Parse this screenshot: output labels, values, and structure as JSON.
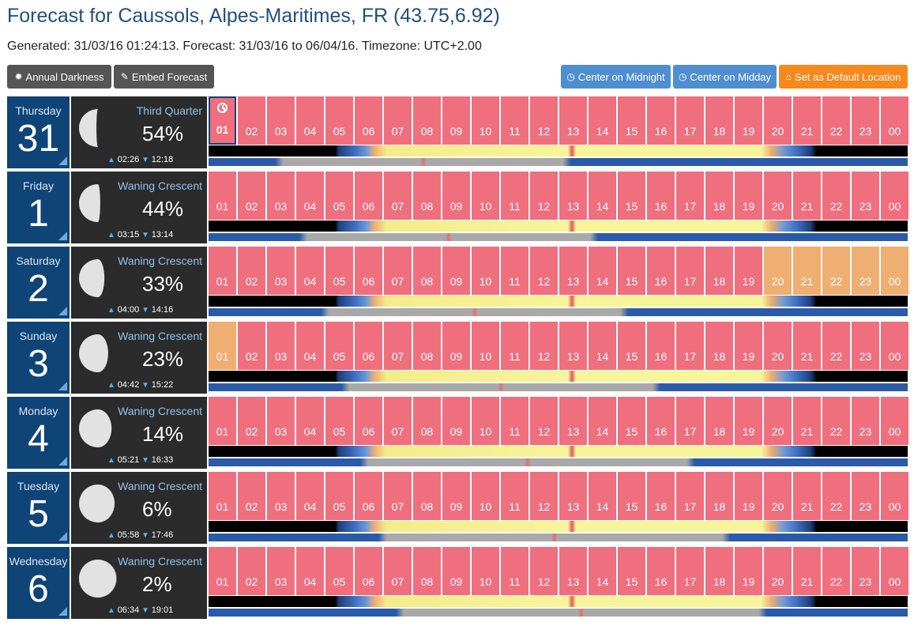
{
  "header": {
    "title": "Forecast for Caussols, Alpes-Maritimes, FR (43.75,6.92)",
    "subtitle": "Generated: 31/03/16 01:24:13. Forecast: 31/03/16 to 06/04/16. Timezone: UTC+2.00"
  },
  "buttons": {
    "annual_darkness": "Annual Darkness",
    "embed_forecast": "Embed Forecast",
    "center_midnight": "Center on Midnight",
    "center_midday": "Center on Midday",
    "set_default": "Set as Default Location"
  },
  "icons": {
    "annual_darkness": "sun-icon",
    "embed_forecast": "pin-icon",
    "center_midnight": "clock-icon",
    "center_midday": "clock-icon",
    "set_default": "home-icon"
  },
  "colors": {
    "header_blue": "#1f4f7f",
    "day_blue": "#0f4477",
    "hour_red": "#ef6f7f",
    "hour_orange": "#efae72",
    "button_blue": "#4f8fd0",
    "button_orange": "#f5891c",
    "button_dark": "#555555"
  },
  "hour_labels": [
    "01",
    "02",
    "03",
    "04",
    "05",
    "06",
    "07",
    "08",
    "09",
    "10",
    "11",
    "12",
    "13",
    "14",
    "15",
    "16",
    "17",
    "18",
    "19",
    "20",
    "21",
    "22",
    "23",
    "00"
  ],
  "days": [
    {
      "name": "Thursday",
      "num": "31",
      "phase": "Third Quarter",
      "pct": "54%",
      "rise": "02:26",
      "set": "12:18",
      "illum": 0.54,
      "orange_hours": [],
      "selected_hour": 0,
      "moon_rise_h": 2.43,
      "moon_set_h": 12.3
    },
    {
      "name": "Friday",
      "num": "1",
      "phase": "Waning Crescent",
      "pct": "44%",
      "rise": "03:15",
      "set": "13:14",
      "illum": 0.44,
      "orange_hours": [],
      "selected_hour": -1,
      "moon_rise_h": 3.25,
      "moon_set_h": 13.23
    },
    {
      "name": "Saturday",
      "num": "2",
      "phase": "Waning Crescent",
      "pct": "33%",
      "rise": "04:00",
      "set": "14:16",
      "illum": 0.33,
      "orange_hours": [
        19,
        20,
        21,
        22,
        23
      ],
      "selected_hour": -1,
      "moon_rise_h": 4.0,
      "moon_set_h": 14.27
    },
    {
      "name": "Sunday",
      "num": "3",
      "phase": "Waning Crescent",
      "pct": "23%",
      "rise": "04:42",
      "set": "15:22",
      "illum": 0.23,
      "orange_hours": [
        0
      ],
      "selected_hour": -1,
      "moon_rise_h": 4.7,
      "moon_set_h": 15.37
    },
    {
      "name": "Monday",
      "num": "4",
      "phase": "Waning Crescent",
      "pct": "14%",
      "rise": "05:21",
      "set": "16:33",
      "illum": 0.14,
      "orange_hours": [],
      "selected_hour": -1,
      "moon_rise_h": 5.35,
      "moon_set_h": 16.55
    },
    {
      "name": "Tuesday",
      "num": "5",
      "phase": "Waning Crescent",
      "pct": "6%",
      "rise": "05:58",
      "set": "17:46",
      "illum": 0.06,
      "orange_hours": [],
      "selected_hour": -1,
      "moon_rise_h": 5.97,
      "moon_set_h": 17.77
    },
    {
      "name": "Wednesday",
      "num": "6",
      "phase": "Waning Crescent",
      "pct": "2%",
      "rise": "06:34",
      "set": "19:01",
      "illum": 0.02,
      "orange_hours": [],
      "selected_hour": -1,
      "moon_rise_h": 6.57,
      "moon_set_h": 19.02
    }
  ]
}
